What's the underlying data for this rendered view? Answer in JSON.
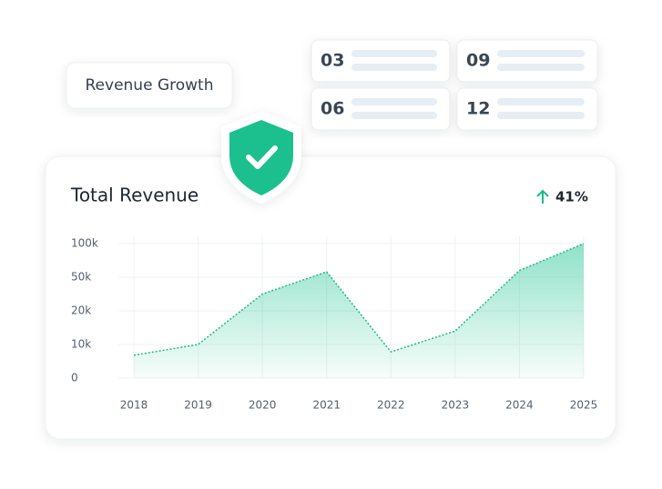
{
  "header": {
    "label": "Revenue Growth"
  },
  "stat_cards": [
    "03",
    "09",
    "06",
    "12"
  ],
  "chart_data": {
    "type": "area",
    "title": "Total Revenue",
    "badge": "41%",
    "categories": [
      "2018",
      "2019",
      "2020",
      "2021",
      "2022",
      "2023",
      "2024",
      "2025"
    ],
    "values": [
      6800,
      10000,
      35000,
      58000,
      7800,
      14000,
      60000,
      100000
    ],
    "color": "#1bb98a",
    "ylim": [
      0,
      100000
    ],
    "yticks": [
      0,
      {
        "value": 10000,
        "label": "10k"
      },
      {
        "value": 20000,
        "label": "20k"
      },
      {
        "value": 50000,
        "label": "50k"
      },
      {
        "value": 100000,
        "label": "100k"
      }
    ],
    "grid": true
  }
}
